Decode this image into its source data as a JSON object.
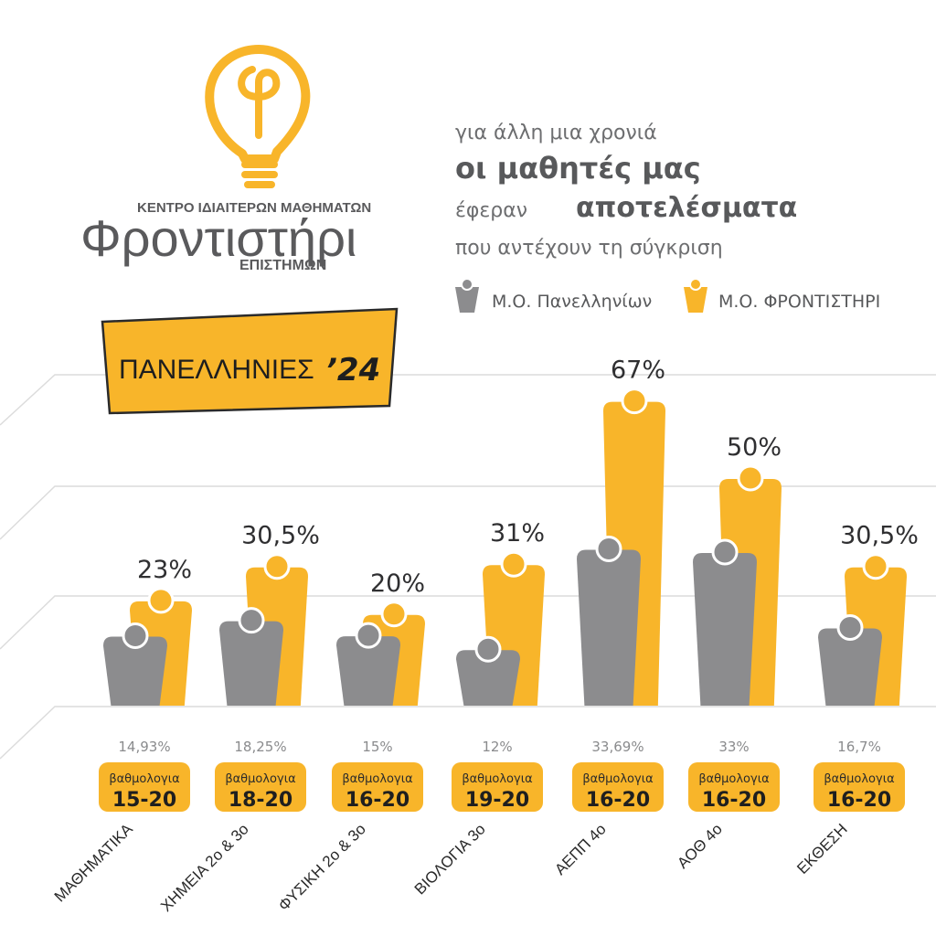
{
  "logo": {
    "top_line": "ΚΕΝΤΡΟ ΙΔΙΑΙΤΕΡΩΝ ΜΑΘΗΜΑΤΩΝ",
    "name": "Φροντιστήρι",
    "bottom_line": "ΕΠΙΣΤΗΜΩΝ"
  },
  "tagline": {
    "line1": "για άλλη μια χρονιά",
    "line2": "οι μαθητές μας",
    "line3_a": "έφεραν",
    "line3_b": "αποτελέσματα",
    "line4": "που αντέχουν τη σύγκριση"
  },
  "badge": {
    "text": "ΠΑΝΕΛΛΗΝΙΕΣ",
    "year": "’24"
  },
  "colors": {
    "national": "#8c8c8e",
    "school": "#f8b52a",
    "text": "#58595b"
  },
  "chart_data": {
    "type": "bar",
    "categories": [
      "ΜΑΘΗΜΑΤΙΚΑ",
      "ΧΗΜΕΙΑ 2ο & 3ο",
      "ΦΥΣΙΚΗ 2ο & 3ο",
      "ΒΙΟΛΟΓΙΑ 3ο",
      "ΑΕΠΠ 4ο",
      "ΑΟΘ 4ο",
      "ΕΚΘΕΣΗ"
    ],
    "series": [
      {
        "name": "Μ.Ο. Πανελληνίων",
        "color": "#8c8c8e",
        "values": [
          14.93,
          18.25,
          15,
          12,
          33.69,
          33,
          16.7
        ],
        "labels": [
          "14,93%",
          "18,25%",
          "15%",
          "12%",
          "33,69%",
          "33%",
          "16,7%"
        ]
      },
      {
        "name": "Μ.Ο. ΦΡΟΝΤΙΣΤΗΡΙ",
        "color": "#f8b52a",
        "values": [
          23,
          30.5,
          20,
          31,
          67,
          50,
          30.5
        ],
        "labels": [
          "23%",
          "30,5%",
          "20%",
          "31%",
          "67%",
          "50%",
          "30,5%"
        ]
      }
    ],
    "grade_label": "βαθμολογια",
    "grade_ranges": [
      "15-20",
      "18-20",
      "16-20",
      "19-20",
      "16-20",
      "16-20",
      "16-20"
    ],
    "ylim": [
      0,
      70
    ],
    "legend_position": "top-right"
  }
}
